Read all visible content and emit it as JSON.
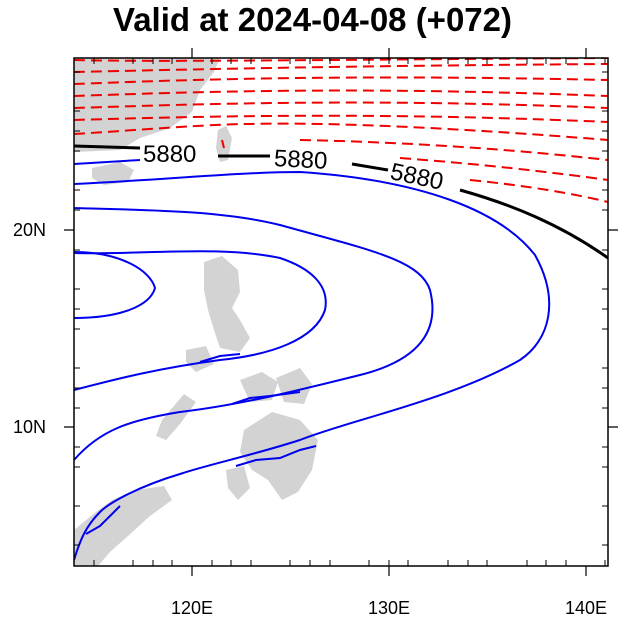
{
  "title": "Valid at 2024-04-08 (+072)",
  "lon_ticks": [
    "120E",
    "130E",
    "140E"
  ],
  "lat_ticks": [
    "20N",
    "10N"
  ],
  "contour_label": "5880",
  "colors": {
    "land": "#d3d3d3",
    "below_5880": "#0000ee",
    "at_5880": "#000000",
    "above_5880": "#ee0000"
  },
  "map_extent": {
    "lon": [
      114,
      141
    ],
    "lat": [
      3,
      29
    ]
  }
}
